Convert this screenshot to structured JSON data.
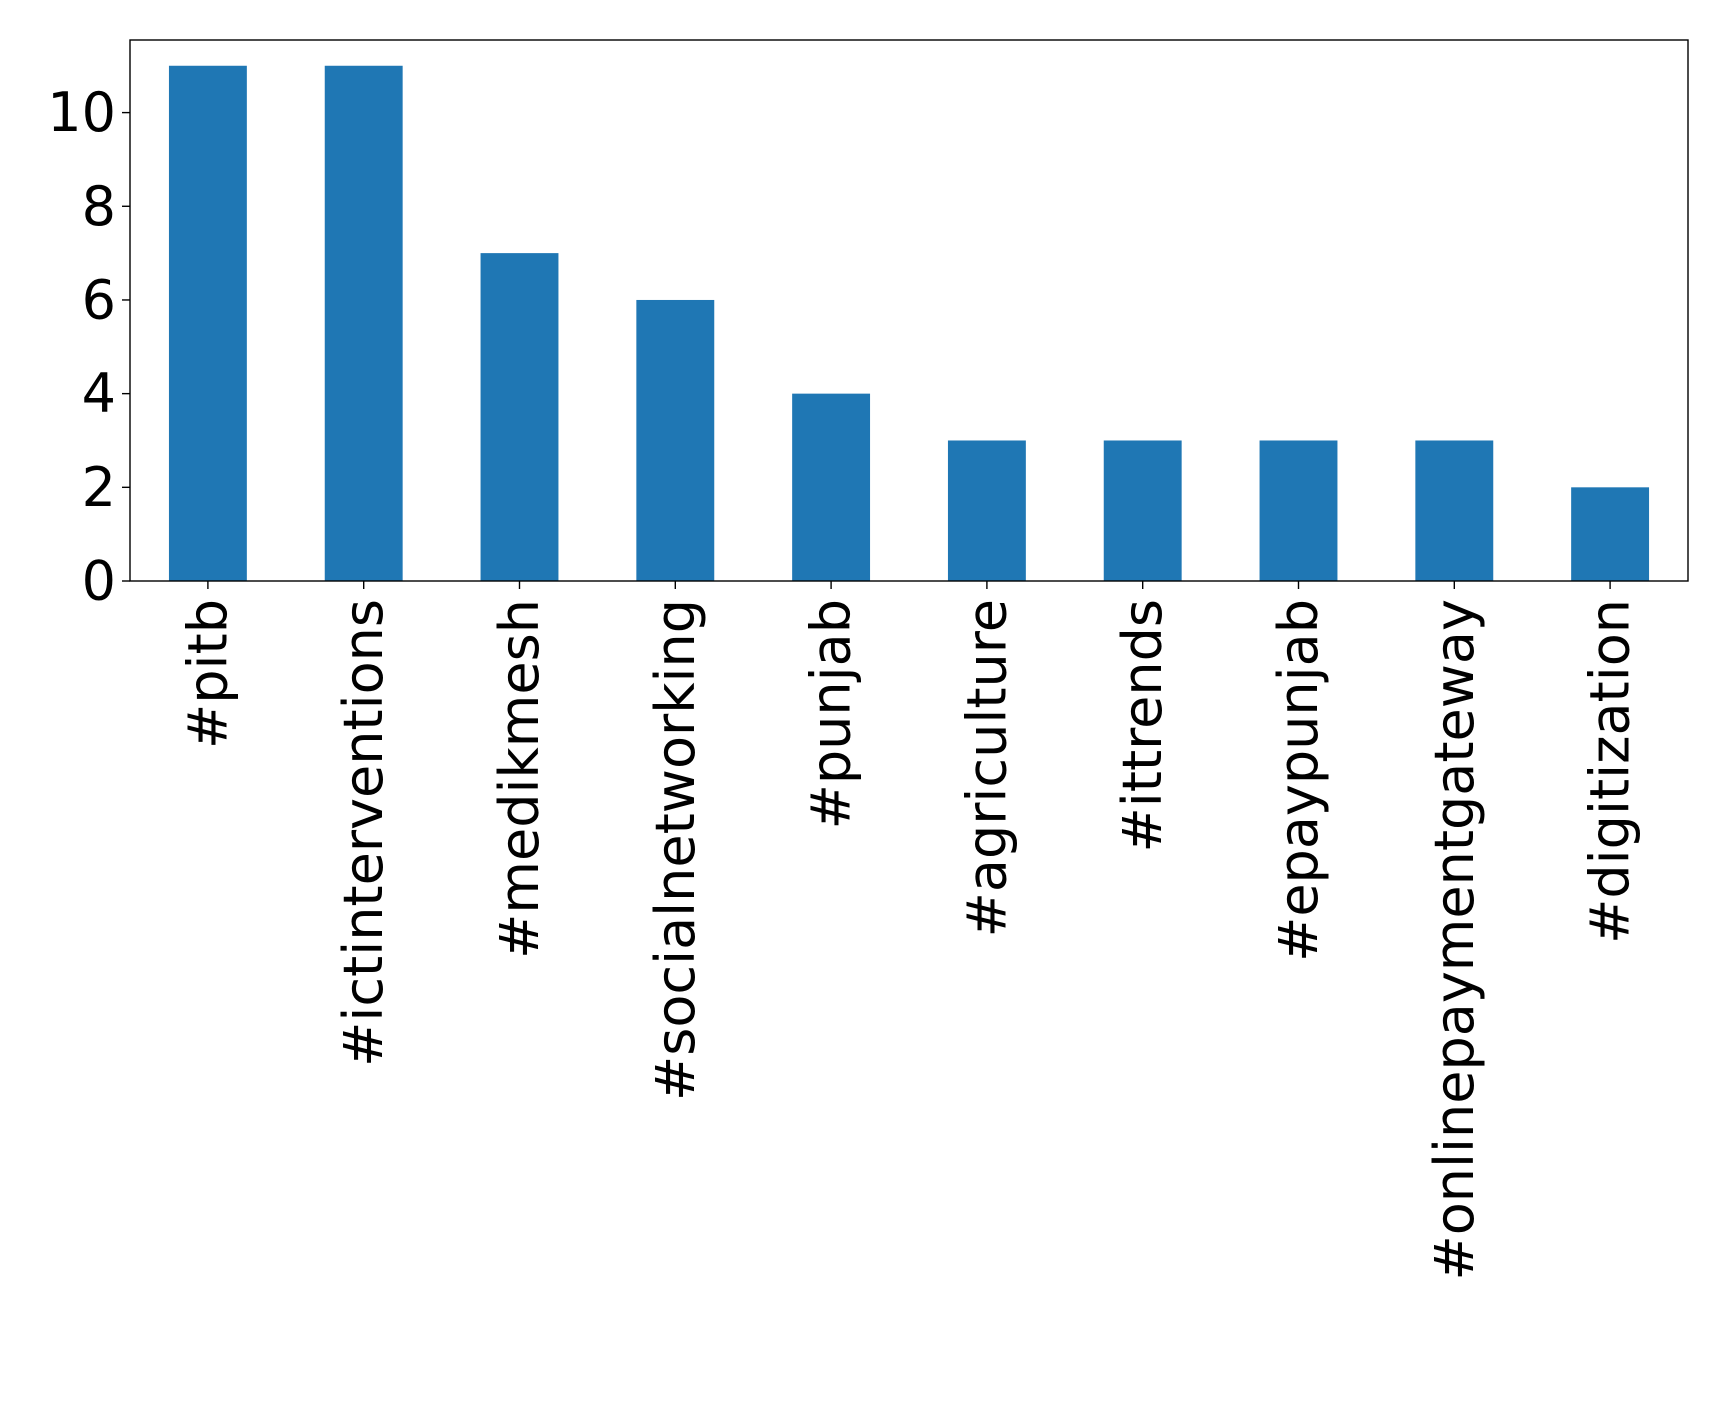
{
  "chart_data": {
    "type": "bar",
    "title": "",
    "xlabel": "",
    "ylabel": "",
    "categories": [
      "#pitb",
      "#ictinterventions",
      "#medikmesh",
      "#socialnetworking",
      "#punjab",
      "#agriculture",
      "#ittrends",
      "#epaypunjab",
      "#onlinepaymentgateway",
      "#digitization"
    ],
    "values": [
      11,
      11,
      7,
      6,
      4,
      3,
      3,
      3,
      3,
      2
    ],
    "ylim": [
      0,
      11.55
    ],
    "yticks": [
      0,
      2,
      4,
      6,
      8,
      10
    ],
    "grid": false,
    "legend": "none",
    "bar_color": "#1f77b4"
  }
}
